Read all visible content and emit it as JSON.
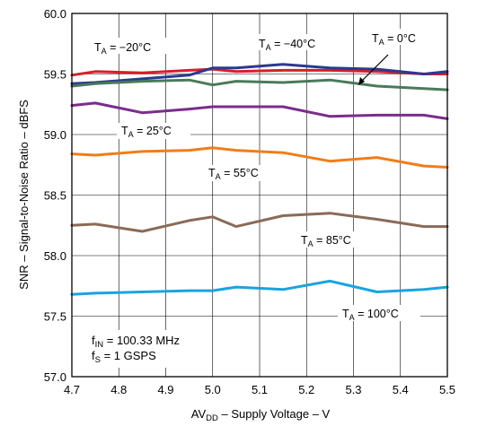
{
  "chart_data": {
    "type": "line",
    "title": "",
    "xlabel": {
      "main": "AV",
      "sub": "DD",
      "rest": " – Supply Voltage – V"
    },
    "ylabel": "SNR – Signal-to-Noise Ratio – dBFS",
    "xlim": [
      4.7,
      5.5
    ],
    "ylim": [
      57.0,
      60.0
    ],
    "x_ticks": [
      "4.7",
      "4.8",
      "4.9",
      "5.0",
      "5.1",
      "5.2",
      "5.3",
      "5.4",
      "5.5"
    ],
    "y_ticks": [
      "57.0",
      "57.5",
      "58.0",
      "58.5",
      "59.0",
      "59.5",
      "60.0"
    ],
    "grid": true,
    "x": [
      4.7,
      4.75,
      4.85,
      4.95,
      5.0,
      5.05,
      5.15,
      5.25,
      5.35,
      5.45,
      5.5
    ],
    "series": [
      {
        "name": "TA = −20°C",
        "label_main": "T",
        "label_sub": "A",
        "label_rest": " = −20°C",
        "color": "#d81e2a",
        "values": [
          59.49,
          59.52,
          59.51,
          59.53,
          59.54,
          59.52,
          59.53,
          59.53,
          59.52,
          59.5,
          59.5
        ]
      },
      {
        "name": "TA = −40°C",
        "label_main": "T",
        "label_sub": "A",
        "label_rest": " = −40°C",
        "color": "#2b3a8f",
        "values": [
          59.42,
          59.43,
          59.46,
          59.49,
          59.55,
          59.55,
          59.58,
          59.55,
          59.54,
          59.5,
          59.52
        ]
      },
      {
        "name": "TA = 0°C",
        "label_main": "T",
        "label_sub": "A",
        "label_rest": " = 0°C",
        "color": "#4a7a5a",
        "values": [
          59.4,
          59.42,
          59.44,
          59.45,
          59.41,
          59.44,
          59.43,
          59.45,
          59.4,
          59.38,
          59.37
        ]
      },
      {
        "name": "TA = 25°C",
        "label_main": "T",
        "label_sub": "A",
        "label_rest": " = 25°C",
        "color": "#7b2d8b",
        "values": [
          59.24,
          59.26,
          59.18,
          59.21,
          59.23,
          59.23,
          59.23,
          59.15,
          59.16,
          59.16,
          59.13
        ]
      },
      {
        "name": "TA = 55°C",
        "label_main": "T",
        "label_sub": "A",
        "label_rest": " = 55°C",
        "color": "#f07d1a",
        "values": [
          58.84,
          58.83,
          58.86,
          58.87,
          58.89,
          58.87,
          58.85,
          58.78,
          58.81,
          58.74,
          58.73
        ]
      },
      {
        "name": "TA = 85°C",
        "label_main": "T",
        "label_sub": "A",
        "label_rest": " = 85°C",
        "color": "#8a6a57",
        "values": [
          58.25,
          58.26,
          58.2,
          58.29,
          58.32,
          58.24,
          58.33,
          58.35,
          58.3,
          58.24,
          58.24
        ]
      },
      {
        "name": "TA = 100°C",
        "label_main": "T",
        "label_sub": "A",
        "label_rest": " = 100°C",
        "color": "#1aa3e0",
        "values": [
          57.68,
          57.69,
          57.7,
          57.71,
          57.71,
          57.74,
          57.72,
          57.79,
          57.7,
          57.72,
          57.74
        ]
      }
    ],
    "annotations": {
      "line1": {
        "main": "f",
        "sub": "IN",
        "rest": " = 100.33 MHz"
      },
      "line2": {
        "main": "f",
        "sub": "S",
        "rest": " = 1 GSPS"
      }
    }
  }
}
